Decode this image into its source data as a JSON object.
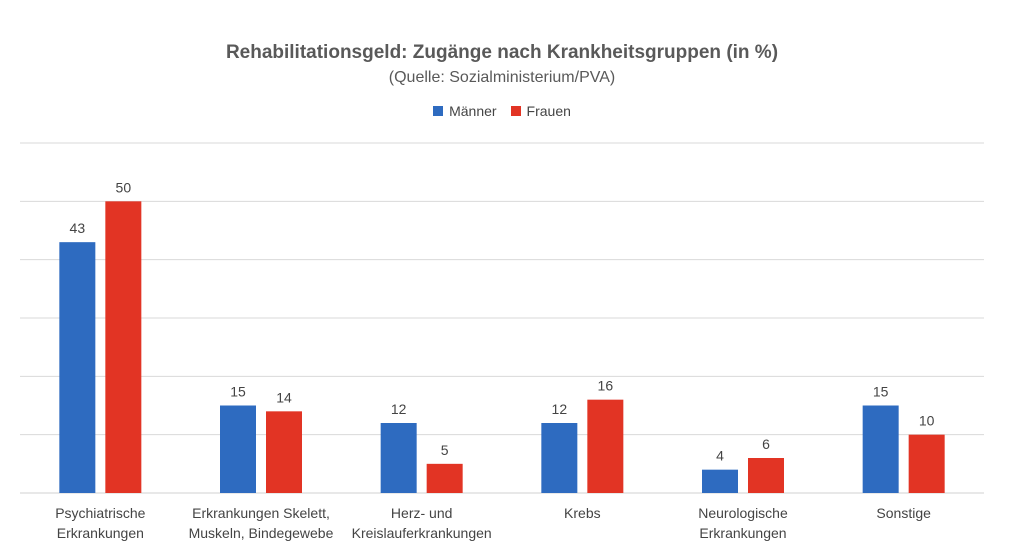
{
  "chart_data": {
    "type": "bar",
    "title": "Rehabilitationsgeld: Zugänge nach Krankheitsgruppen (in %)",
    "subtitle": "(Quelle: Sozialministerium/PVA)",
    "categories": [
      [
        "Psychiatrische",
        "Erkrankungen"
      ],
      [
        "Erkrankungen Skelett,",
        "Muskeln, Bindegewebe"
      ],
      [
        "Herz- und",
        "Kreislauferkrankungen"
      ],
      [
        "Krebs"
      ],
      [
        "Neurologische",
        "Erkrankungen"
      ],
      [
        "Sonstige"
      ]
    ],
    "series": [
      {
        "name": "Männer",
        "color": "#2E6BC0",
        "values": [
          43,
          15,
          12,
          12,
          4,
          15
        ]
      },
      {
        "name": "Frauen",
        "color": "#E23424",
        "values": [
          50,
          14,
          5,
          16,
          6,
          10
        ]
      }
    ],
    "ylim": [
      0,
      60
    ],
    "gridlines": true,
    "legend_position": "top-center",
    "xlabel": "",
    "ylabel": ""
  }
}
